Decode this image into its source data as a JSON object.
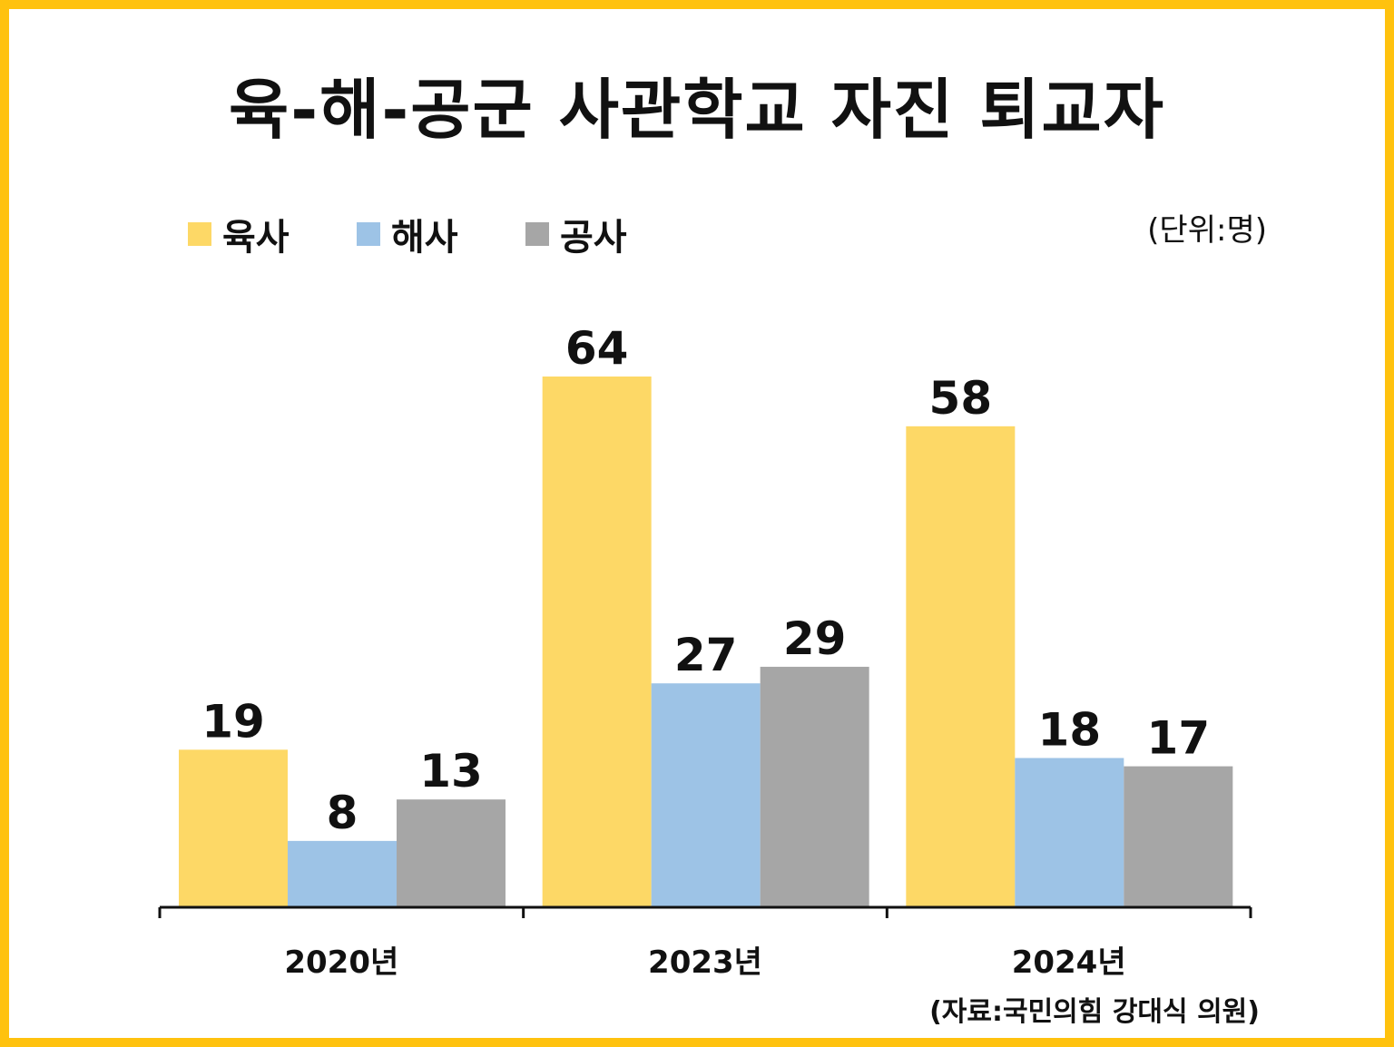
{
  "title": "육-해-공군 사관학교 자진 퇴교자",
  "unit_label": "(단위:명)",
  "source_label": "(자료:국민의힘 강대식 의원)",
  "colors": {
    "frame": "#FFC20E",
    "axis": "#111111"
  },
  "chart_data": {
    "type": "bar",
    "title": "육-해-공군 사관학교 자진 퇴교자",
    "categories": [
      "2020년",
      "2023년",
      "2024년"
    ],
    "series": [
      {
        "name": "육사",
        "color": "#FDD866",
        "values": [
          19,
          64,
          58
        ]
      },
      {
        "name": "해사",
        "color": "#9DC3E6",
        "values": [
          8,
          27,
          18
        ]
      },
      {
        "name": "공사",
        "color": "#A6A6A6",
        "values": [
          13,
          29,
          17
        ]
      }
    ],
    "ylim": [
      0,
      64
    ],
    "grid": false,
    "legend": "top-left",
    "data_labels": true
  }
}
